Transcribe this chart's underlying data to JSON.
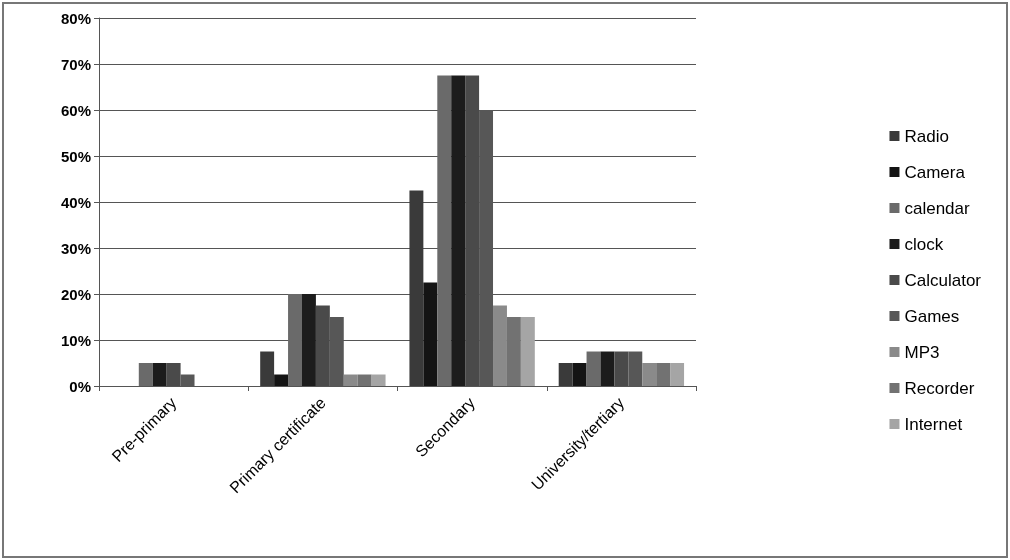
{
  "chart_data": {
    "type": "bar",
    "categories": [
      "Pre-primary",
      "Primary certificate",
      "Secondary",
      "University/tertiary"
    ],
    "series": [
      {
        "name": "Radio",
        "color": "#3a3a3a",
        "values": [
          0,
          7.5,
          42.5,
          5
        ]
      },
      {
        "name": "Camera",
        "color": "#141414",
        "values": [
          0,
          2.5,
          22.5,
          5
        ]
      },
      {
        "name": "calendar",
        "color": "#6a6a6a",
        "values": [
          5,
          20,
          67.5,
          7.5
        ]
      },
      {
        "name": "clock",
        "color": "#1c1c1c",
        "values": [
          5,
          20,
          67.5,
          7.5
        ]
      },
      {
        "name": "Calculator",
        "color": "#4a4a4a",
        "values": [
          5,
          17.5,
          67.5,
          7.5
        ]
      },
      {
        "name": "Games",
        "color": "#575757",
        "values": [
          2.5,
          15,
          60,
          7.5
        ]
      },
      {
        "name": "MP3",
        "color": "#8a8a8a",
        "values": [
          0,
          2.5,
          17.5,
          5
        ]
      },
      {
        "name": "Recorder",
        "color": "#727272",
        "values": [
          0,
          2.5,
          15,
          5
        ]
      },
      {
        "name": "Internet",
        "color": "#a5a5a5",
        "values": [
          0,
          2.5,
          15,
          5
        ]
      }
    ],
    "ylim": [
      0,
      80
    ],
    "yticks": [
      {
        "value": 0,
        "label": "0%"
      },
      {
        "value": 10,
        "label": "10%"
      },
      {
        "value": 20,
        "label": "20%"
      },
      {
        "value": 30,
        "label": "30%"
      },
      {
        "value": 40,
        "label": "40%"
      },
      {
        "value": 50,
        "label": "50%"
      },
      {
        "value": 60,
        "label": "60%"
      },
      {
        "value": 70,
        "label": "70%"
      },
      {
        "value": 80,
        "label": "80%"
      }
    ],
    "grid": "y",
    "legend": "right"
  }
}
